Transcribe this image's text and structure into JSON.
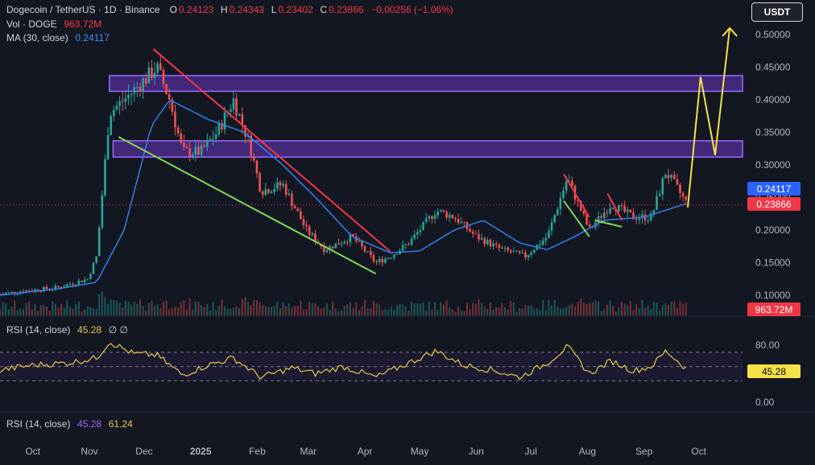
{
  "header": {
    "title": "Dogecoin / TetherUS · 1D · Binance",
    "o_key": "O",
    "o_val": "0.24123",
    "h_key": "H",
    "h_val": "0.24343",
    "l_key": "L",
    "l_val": "0.23402",
    "c_key": "C",
    "c_val": "0.23866",
    "change": "−0.00256 (−1.06%)",
    "vol_label": "Vol · DOGE",
    "vol_val": "963.72M",
    "ma_label": "MA (30, close)",
    "ma_val": "0.24117"
  },
  "currency_button": "USDT",
  "rsi_legend": {
    "label": "RSI (14, close)",
    "value": "45.28",
    "icons": "∅ ∅"
  },
  "rsi_legend2": {
    "label": "RSI (14, close)",
    "value1": "45.28",
    "value2": "61.24"
  },
  "badges": {
    "ma": "0.24117",
    "price": "0.23866",
    "volume": "963.72M",
    "rsi": "45.28"
  },
  "colors": {
    "up": "#26a69a",
    "down": "#ef5350",
    "ma": "#2f80ed",
    "zone": "#7b3fe4",
    "arrow": "#f5e148",
    "red_line": "#f23645",
    "green_line": "#7ed957",
    "rsi": "#e6c84a"
  },
  "chart_data": [
    {
      "type": "candlestick",
      "title": "Dogecoin / TetherUS · 1D · Binance",
      "y_ticks": [
        "0.50000",
        "0.45000",
        "0.40000",
        "0.35000",
        "0.30000",
        "0.25000",
        "0.20000",
        "0.15000",
        "0.10000"
      ],
      "y_tick_values": [
        0.5,
        0.45,
        0.4,
        0.35,
        0.3,
        0.25,
        0.2,
        0.15,
        0.1
      ],
      "ylim": [
        0.065,
        0.53
      ],
      "x_ticks": [
        "Oct",
        "Nov",
        "Dec",
        "2025",
        "Feb",
        "Mar",
        "Apr",
        "May",
        "Jun",
        "Jul",
        "Aug",
        "Sep",
        "Oct"
      ],
      "x_dates": [
        "2024-10-01",
        "2024-11-01",
        "2024-12-01",
        "2025-01-01",
        "2025-02-01",
        "2025-03-01",
        "2025-04-01",
        "2025-05-01",
        "2025-06-01",
        "2025-07-01",
        "2025-08-01",
        "2025-09-01",
        "2025-10-01"
      ],
      "xlim": [
        "2024-09-13",
        "2025-10-25"
      ],
      "price_path": [
        [
          "2024-09-13",
          0.102
        ],
        [
          "2024-10-01",
          0.108
        ],
        [
          "2024-10-15",
          0.112
        ],
        [
          "2024-10-31",
          0.125
        ],
        [
          "2024-11-05",
          0.16
        ],
        [
          "2024-11-12",
          0.38
        ],
        [
          "2024-11-20",
          0.4
        ],
        [
          "2024-12-01",
          0.43
        ],
        [
          "2024-12-08",
          0.45
        ],
        [
          "2024-12-15",
          0.4
        ],
        [
          "2024-12-22",
          0.32
        ],
        [
          "2025-01-01",
          0.32
        ],
        [
          "2025-01-10",
          0.35
        ],
        [
          "2025-01-19",
          0.4
        ],
        [
          "2025-01-28",
          0.33
        ],
        [
          "2025-02-03",
          0.26
        ],
        [
          "2025-02-15",
          0.27
        ],
        [
          "2025-02-28",
          0.2
        ],
        [
          "2025-03-10",
          0.17
        ],
        [
          "2025-03-25",
          0.19
        ],
        [
          "2025-04-07",
          0.15
        ],
        [
          "2025-04-15",
          0.16
        ],
        [
          "2025-04-25",
          0.18
        ],
        [
          "2025-05-10",
          0.23
        ],
        [
          "2025-05-20",
          0.22
        ],
        [
          "2025-06-01",
          0.19
        ],
        [
          "2025-06-15",
          0.17
        ],
        [
          "2025-06-28",
          0.16
        ],
        [
          "2025-07-10",
          0.19
        ],
        [
          "2025-07-21",
          0.28
        ],
        [
          "2025-08-02",
          0.2
        ],
        [
          "2025-08-14",
          0.24
        ],
        [
          "2025-08-26",
          0.22
        ],
        [
          "2025-09-05",
          0.22
        ],
        [
          "2025-09-13",
          0.29
        ],
        [
          "2025-09-20",
          0.26
        ],
        [
          "2025-09-25",
          0.2387
        ]
      ],
      "ma_path": [
        [
          "2024-09-13",
          0.1
        ],
        [
          "2024-10-15",
          0.11
        ],
        [
          "2024-11-05",
          0.12
        ],
        [
          "2024-11-20",
          0.2
        ],
        [
          "2024-12-05",
          0.36
        ],
        [
          "2024-12-15",
          0.4
        ],
        [
          "2025-01-05",
          0.37
        ],
        [
          "2025-01-25",
          0.35
        ],
        [
          "2025-02-15",
          0.3
        ],
        [
          "2025-03-05",
          0.25
        ],
        [
          "2025-03-25",
          0.19
        ],
        [
          "2025-04-15",
          0.165
        ],
        [
          "2025-05-01",
          0.168
        ],
        [
          "2025-05-20",
          0.2
        ],
        [
          "2025-06-05",
          0.215
        ],
        [
          "2025-06-25",
          0.18
        ],
        [
          "2025-07-10",
          0.17
        ],
        [
          "2025-07-25",
          0.19
        ],
        [
          "2025-08-10",
          0.215
        ],
        [
          "2025-09-01",
          0.22
        ],
        [
          "2025-09-25",
          0.2412
        ]
      ],
      "zones": [
        {
          "x0": "2024-11-12",
          "x1": "2025-10-25",
          "y0": 0.413,
          "y1": 0.437
        },
        {
          "x0": "2024-11-14",
          "x1": "2025-10-25",
          "y0": 0.312,
          "y1": 0.337
        }
      ],
      "trendlines": [
        {
          "color": "red",
          "x0": "2024-12-06",
          "y0": 0.478,
          "x1": "2025-04-15",
          "y1": 0.167
        },
        {
          "color": "green",
          "x0": "2024-11-17",
          "y0": 0.343,
          "x1": "2025-04-07",
          "y1": 0.133
        },
        {
          "color": "red",
          "x0": "2025-07-19",
          "y0": 0.286,
          "x1": "2025-08-02",
          "y1": 0.22
        },
        {
          "color": "green",
          "x0": "2025-07-19",
          "y0": 0.245,
          "x1": "2025-08-02",
          "y1": 0.19
        },
        {
          "color": "red",
          "x0": "2025-08-12",
          "y0": 0.256,
          "x1": "2025-08-20",
          "y1": 0.215
        },
        {
          "color": "green",
          "x0": "2025-08-05",
          "y0": 0.215,
          "x1": "2025-08-20",
          "y1": 0.205
        }
      ],
      "projection": [
        [
          "2025-09-25",
          0.235
        ],
        [
          "2025-10-02",
          0.435
        ],
        [
          "2025-10-10",
          0.315
        ],
        [
          "2025-10-18",
          0.51
        ]
      ],
      "last_price": 0.23866,
      "ma_last": 0.24117,
      "volume_last": "963.72M"
    },
    {
      "type": "line",
      "title": "RSI (14, close)",
      "y_ticks": [
        "80.00",
        "0.00"
      ],
      "y_tick_values": [
        80,
        0
      ],
      "ylim": [
        -8,
        100
      ],
      "bands": [
        70,
        50,
        30
      ],
      "rsi_path": [
        [
          "2024-09-13",
          45
        ],
        [
          "2024-10-01",
          52
        ],
        [
          "2024-10-20",
          55
        ],
        [
          "2024-11-05",
          62
        ],
        [
          "2024-11-12",
          85
        ],
        [
          "2024-11-25",
          68
        ],
        [
          "2024-12-08",
          66
        ],
        [
          "2024-12-22",
          38
        ],
        [
          "2025-01-05",
          52
        ],
        [
          "2025-01-19",
          62
        ],
        [
          "2025-02-03",
          35
        ],
        [
          "2025-02-20",
          48
        ],
        [
          "2025-03-05",
          40
        ],
        [
          "2025-03-20",
          50
        ],
        [
          "2025-04-07",
          35
        ],
        [
          "2025-04-25",
          55
        ],
        [
          "2025-05-10",
          72
        ],
        [
          "2025-05-25",
          52
        ],
        [
          "2025-06-10",
          45
        ],
        [
          "2025-06-25",
          35
        ],
        [
          "2025-07-10",
          55
        ],
        [
          "2025-07-21",
          78
        ],
        [
          "2025-08-02",
          40
        ],
        [
          "2025-08-14",
          58
        ],
        [
          "2025-08-26",
          44
        ],
        [
          "2025-09-05",
          50
        ],
        [
          "2025-09-13",
          72
        ],
        [
          "2025-09-25",
          45.28
        ]
      ],
      "last_value": 45.28
    }
  ]
}
